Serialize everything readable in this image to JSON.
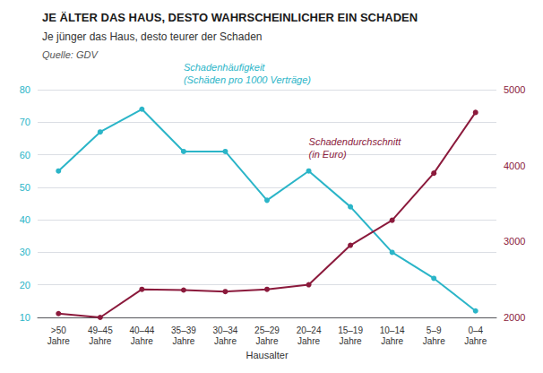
{
  "chart_data": {
    "type": "line",
    "title": "JE ÄLTER DAS HAUS, DESTO WAHRSCHEINLICHER EIN SCHADEN",
    "subtitle": "Je jünger das Haus, desto teurer der Schaden",
    "annotations": [
      "Quelle: GDV"
    ],
    "xlabel": "Hausalter",
    "categories": [
      ">50\nJahre",
      "49–45\nJahre",
      "40–44\nJahre",
      "35–39\nJahre",
      "30–34\nJahre",
      "25–29\nJahre",
      "20–24\nJahre",
      "15–19\nJahre",
      "10–14\nJahre",
      "5–9\nJahre",
      "0–4\nJahre"
    ],
    "series": [
      {
        "name": "Schadenhäufigkeit\n(Schäden pro 1000 Verträge)",
        "color": "#2BB5C8",
        "marker": "circle",
        "values": [
          55,
          67,
          74,
          61,
          61,
          46,
          55,
          44,
          30,
          22,
          12
        ]
      },
      {
        "name": "Schadendurchschnitt\n(in Euro)",
        "color": "#8B1A3C",
        "marker": "circle",
        "axis": "y2",
        "values": [
          2050,
          2000,
          2370,
          2360,
          2340,
          2370,
          2430,
          2950,
          3280,
          3900,
          4700
        ]
      }
    ],
    "ylim": [
      10,
      80
    ],
    "yticks": [
      10,
      20,
      30,
      40,
      50,
      60,
      70,
      80
    ],
    "y2lim": [
      2000,
      5000
    ],
    "y2ticks": [
      2000,
      3000,
      4000,
      5000
    ],
    "grid": true
  }
}
